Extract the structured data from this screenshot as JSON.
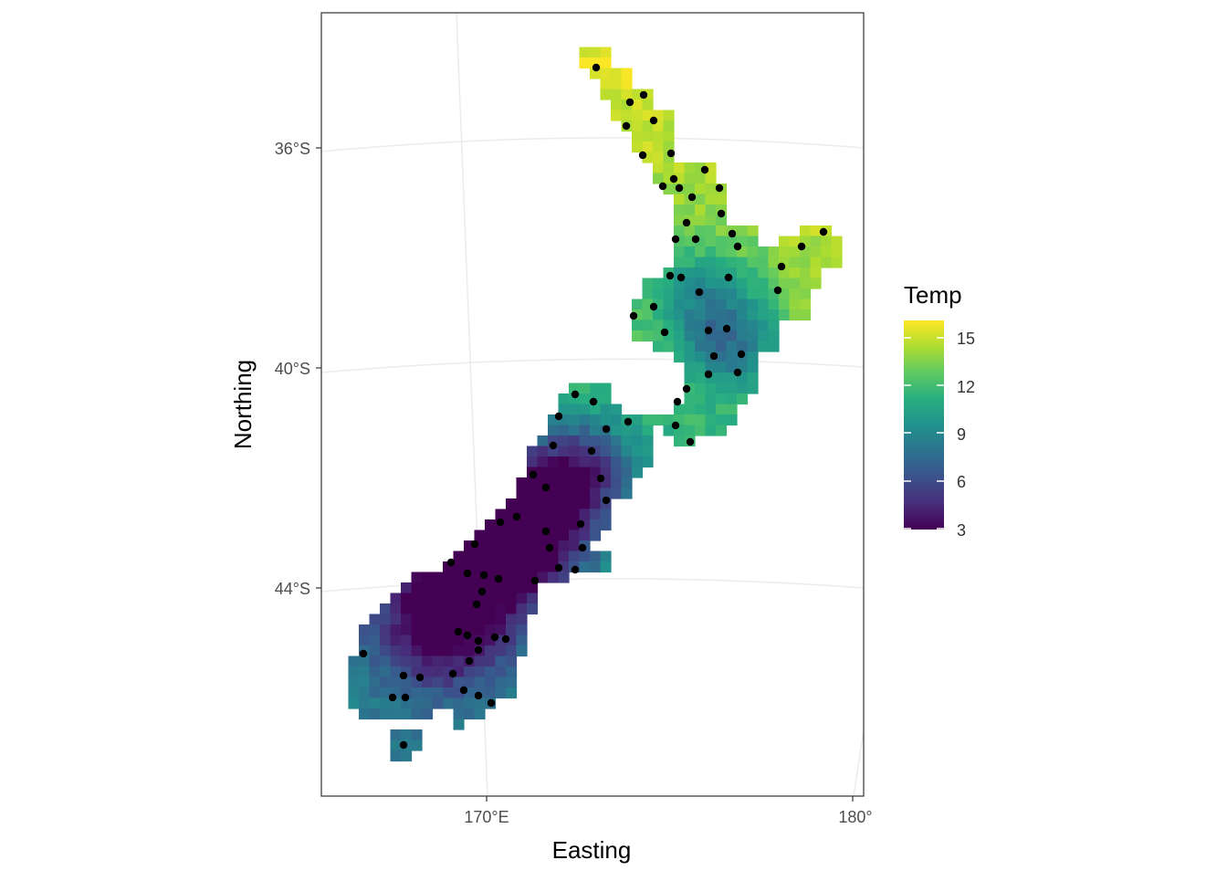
{
  "map": {
    "x_axis_title": "Easting",
    "y_axis_title": "Northing",
    "x_ticks": [
      "170°E",
      "180°"
    ],
    "y_ticks": [
      "36°S",
      "40°S",
      "44°S"
    ],
    "legend": {
      "title": "Temp",
      "min": 3,
      "max": 16,
      "ticks": [
        "15",
        "12",
        "9",
        "6",
        "3"
      ],
      "colors": [
        "#440154",
        "#472d7b",
        "#3b528b",
        "#2c728e",
        "#21918c",
        "#28ae80",
        "#5ec962",
        "#addc30",
        "#fde725"
      ]
    },
    "raster_color_scale": "viridis",
    "points_color": "#000000",
    "grid": true
  }
}
